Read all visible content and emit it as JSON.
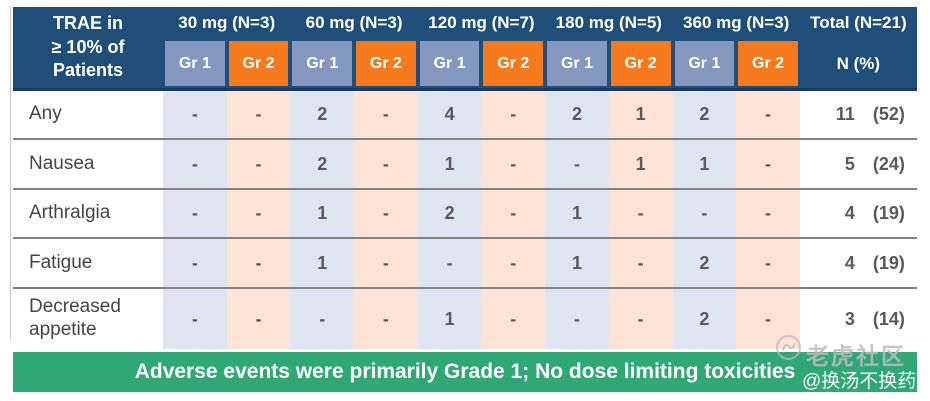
{
  "table": {
    "corner_lines": [
      "TRAE in",
      "≥ 10% of",
      "Patients"
    ],
    "dose_groups": [
      {
        "label": "30 mg (N=3)"
      },
      {
        "label": "60 mg (N=3)"
      },
      {
        "label": "120 mg (N=7)"
      },
      {
        "label": "180 mg (N=5)"
      },
      {
        "label": "360 mg (N=3)"
      }
    ],
    "grade_headers": [
      "Gr 1",
      "Gr 2"
    ],
    "total_header": "Total (N=21)",
    "total_subheader": "N (%)",
    "rows": [
      {
        "label": "Any",
        "values": [
          "-",
          "-",
          "2",
          "-",
          "4",
          "-",
          "2",
          "1",
          "2",
          "-"
        ],
        "total_n": "11",
        "total_pct": "(52)"
      },
      {
        "label": "Nausea",
        "values": [
          "-",
          "-",
          "2",
          "-",
          "1",
          "-",
          "-",
          "1",
          "1",
          "-"
        ],
        "total_n": "5",
        "total_pct": "(24)"
      },
      {
        "label": "Arthralgia",
        "values": [
          "-",
          "-",
          "1",
          "-",
          "2",
          "-",
          "1",
          "-",
          "-",
          "-"
        ],
        "total_n": "4",
        "total_pct": "(19)"
      },
      {
        "label": "Fatigue",
        "values": [
          "-",
          "-",
          "1",
          "-",
          "-",
          "-",
          "1",
          "-",
          "2",
          "-"
        ],
        "total_n": "4",
        "total_pct": "(19)"
      },
      {
        "label": "Decreased appetite",
        "values": [
          "-",
          "-",
          "-",
          "-",
          "1",
          "-",
          "-",
          "-",
          "2",
          "-"
        ],
        "total_n": "3",
        "total_pct": "(14)"
      }
    ]
  },
  "banner": {
    "text": "Adverse events were primarily Grade 1; No dose limiting toxicities"
  },
  "watermark": {
    "logo_icon": "tiger-community-logo",
    "community": "老虎社区",
    "handle": "@换汤不换药"
  },
  "colors": {
    "header_navy": "#1f4e79",
    "gr1_header": "#8497bf",
    "gr2_header": "#f57a1e",
    "gr1_body": "#dfe5f0",
    "gr2_body": "#fce3d6",
    "banner_green": "#2fa876",
    "data_text": "#595959",
    "separator": "#828282"
  }
}
